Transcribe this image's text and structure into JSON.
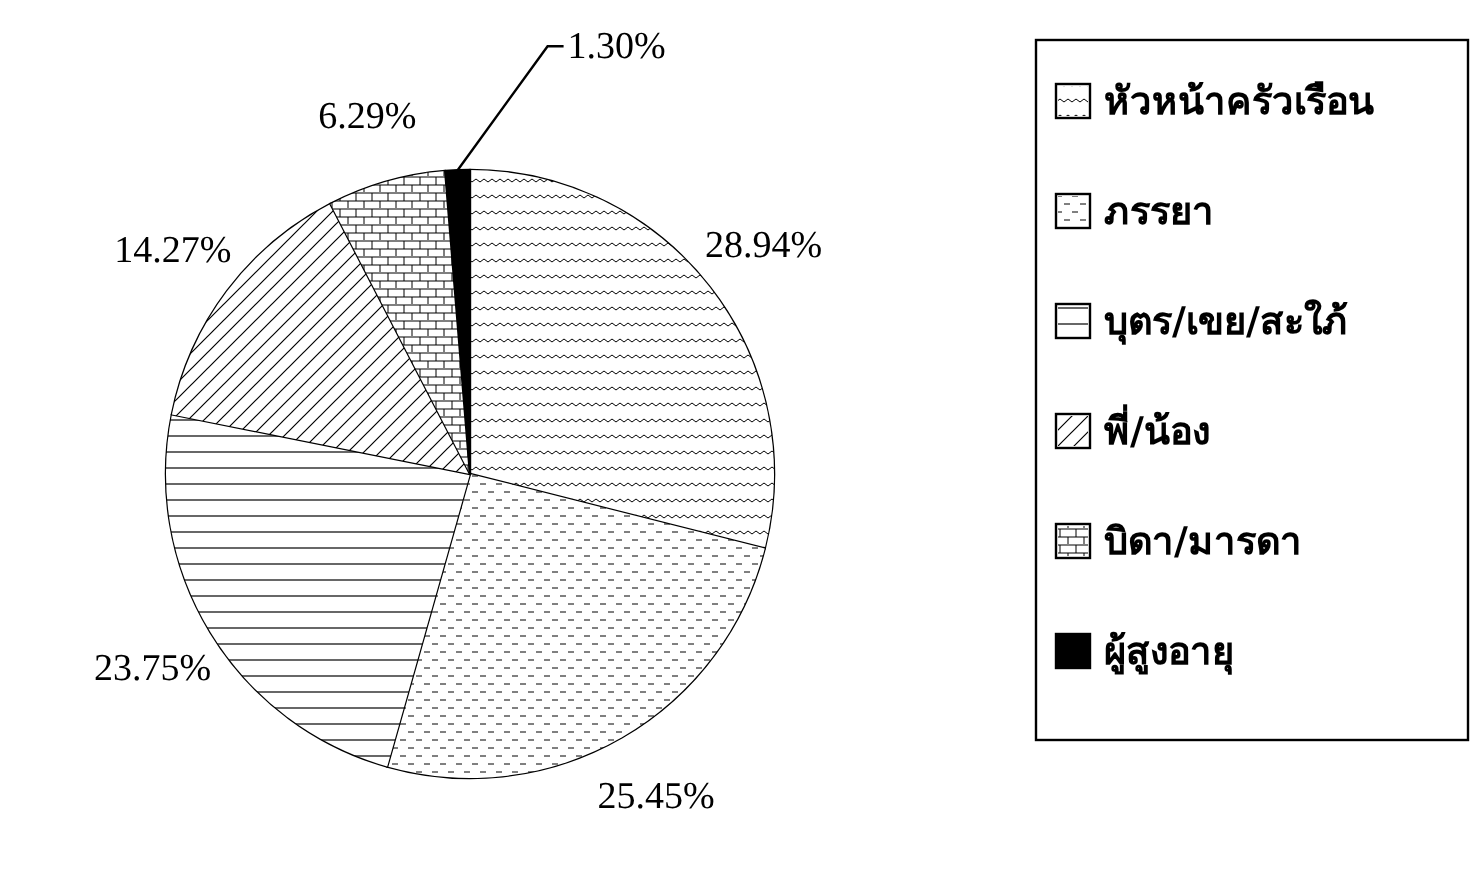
{
  "chart_data": {
    "type": "pie",
    "categories": [
      "หัวหน้าครัวเรือน",
      "ภรรยา",
      "บุตร/เขย/สะใภ้",
      "พี่/น้อง",
      "บิดา/มารดา",
      "ผู้สูงอายุ"
    ],
    "values": [
      28.94,
      25.45,
      23.75,
      14.27,
      6.29,
      1.3
    ],
    "value_labels": [
      "28.94%",
      "25.45%",
      "23.75%",
      "14.27%",
      "6.29%",
      "1.30%"
    ],
    "colors": [
      "#ffffff",
      "#ffffff",
      "#ffffff",
      "#ffffff",
      "#ffffff",
      "#000000"
    ],
    "legend": "right"
  }
}
